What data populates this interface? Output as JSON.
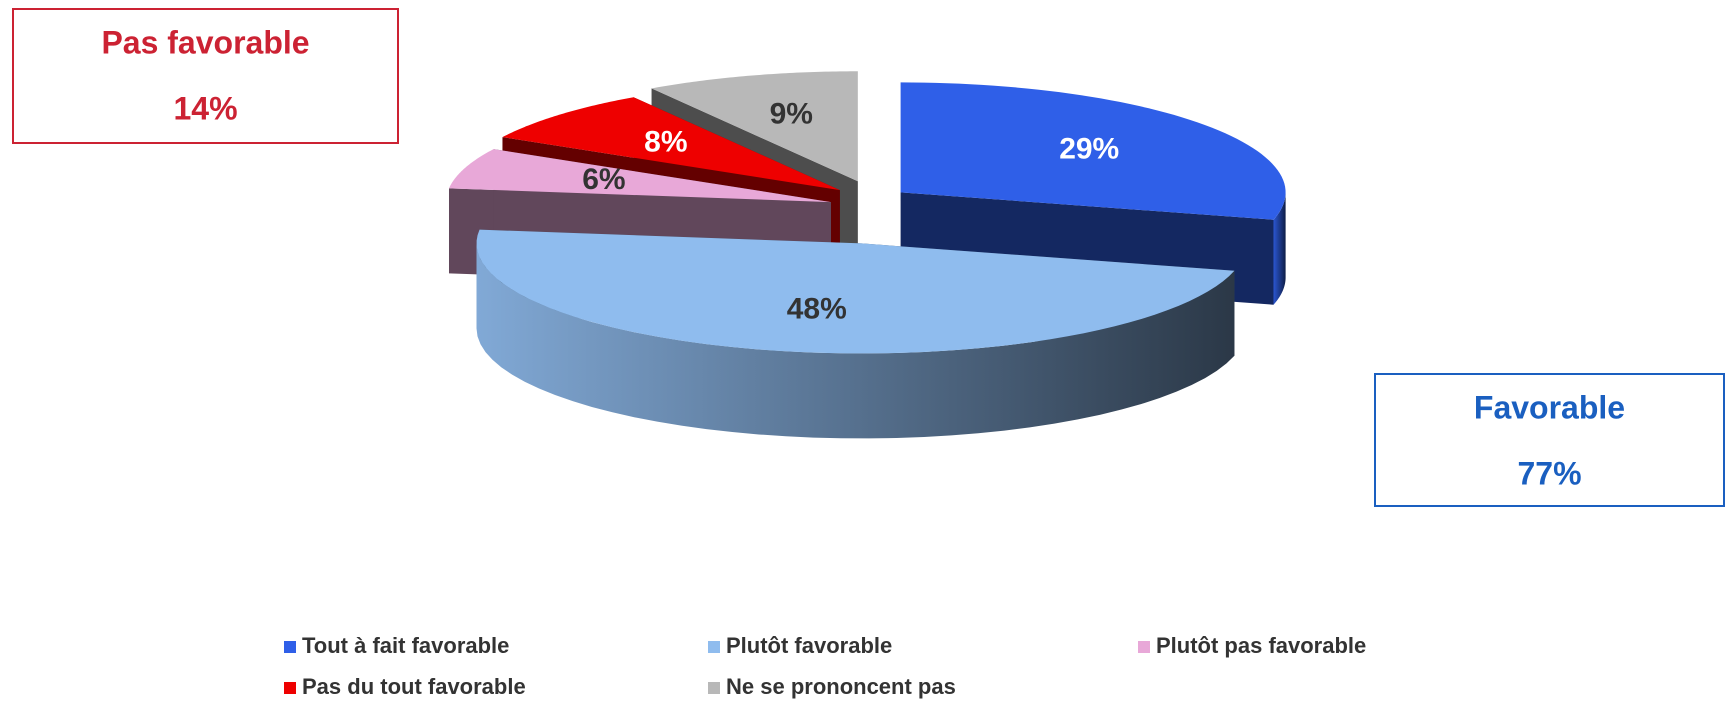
{
  "chart_data": {
    "type": "pie3d",
    "categories": [
      "Tout à fait favorable",
      "Plutôt favorable",
      "Plutôt pas favorable",
      "Pas du tout favorable",
      "Ne se prononcent pas"
    ],
    "values": [
      29,
      48,
      6,
      8,
      9
    ],
    "value_labels": [
      "29%",
      "48%",
      "6%",
      "8%",
      "9%"
    ],
    "colors": [
      "#2f5fe8",
      "#8fbcee",
      "#e8a8d8",
      "#ee0000",
      "#b8b8b8"
    ],
    "annotations": [
      {
        "text": "Pas favorable",
        "value": 14,
        "value_label": "14%",
        "color": "#cc2233"
      },
      {
        "text": "Favorable",
        "value": 77,
        "value_label": "77%",
        "color": "#1a5fc0"
      }
    ],
    "legend": "bottom"
  }
}
